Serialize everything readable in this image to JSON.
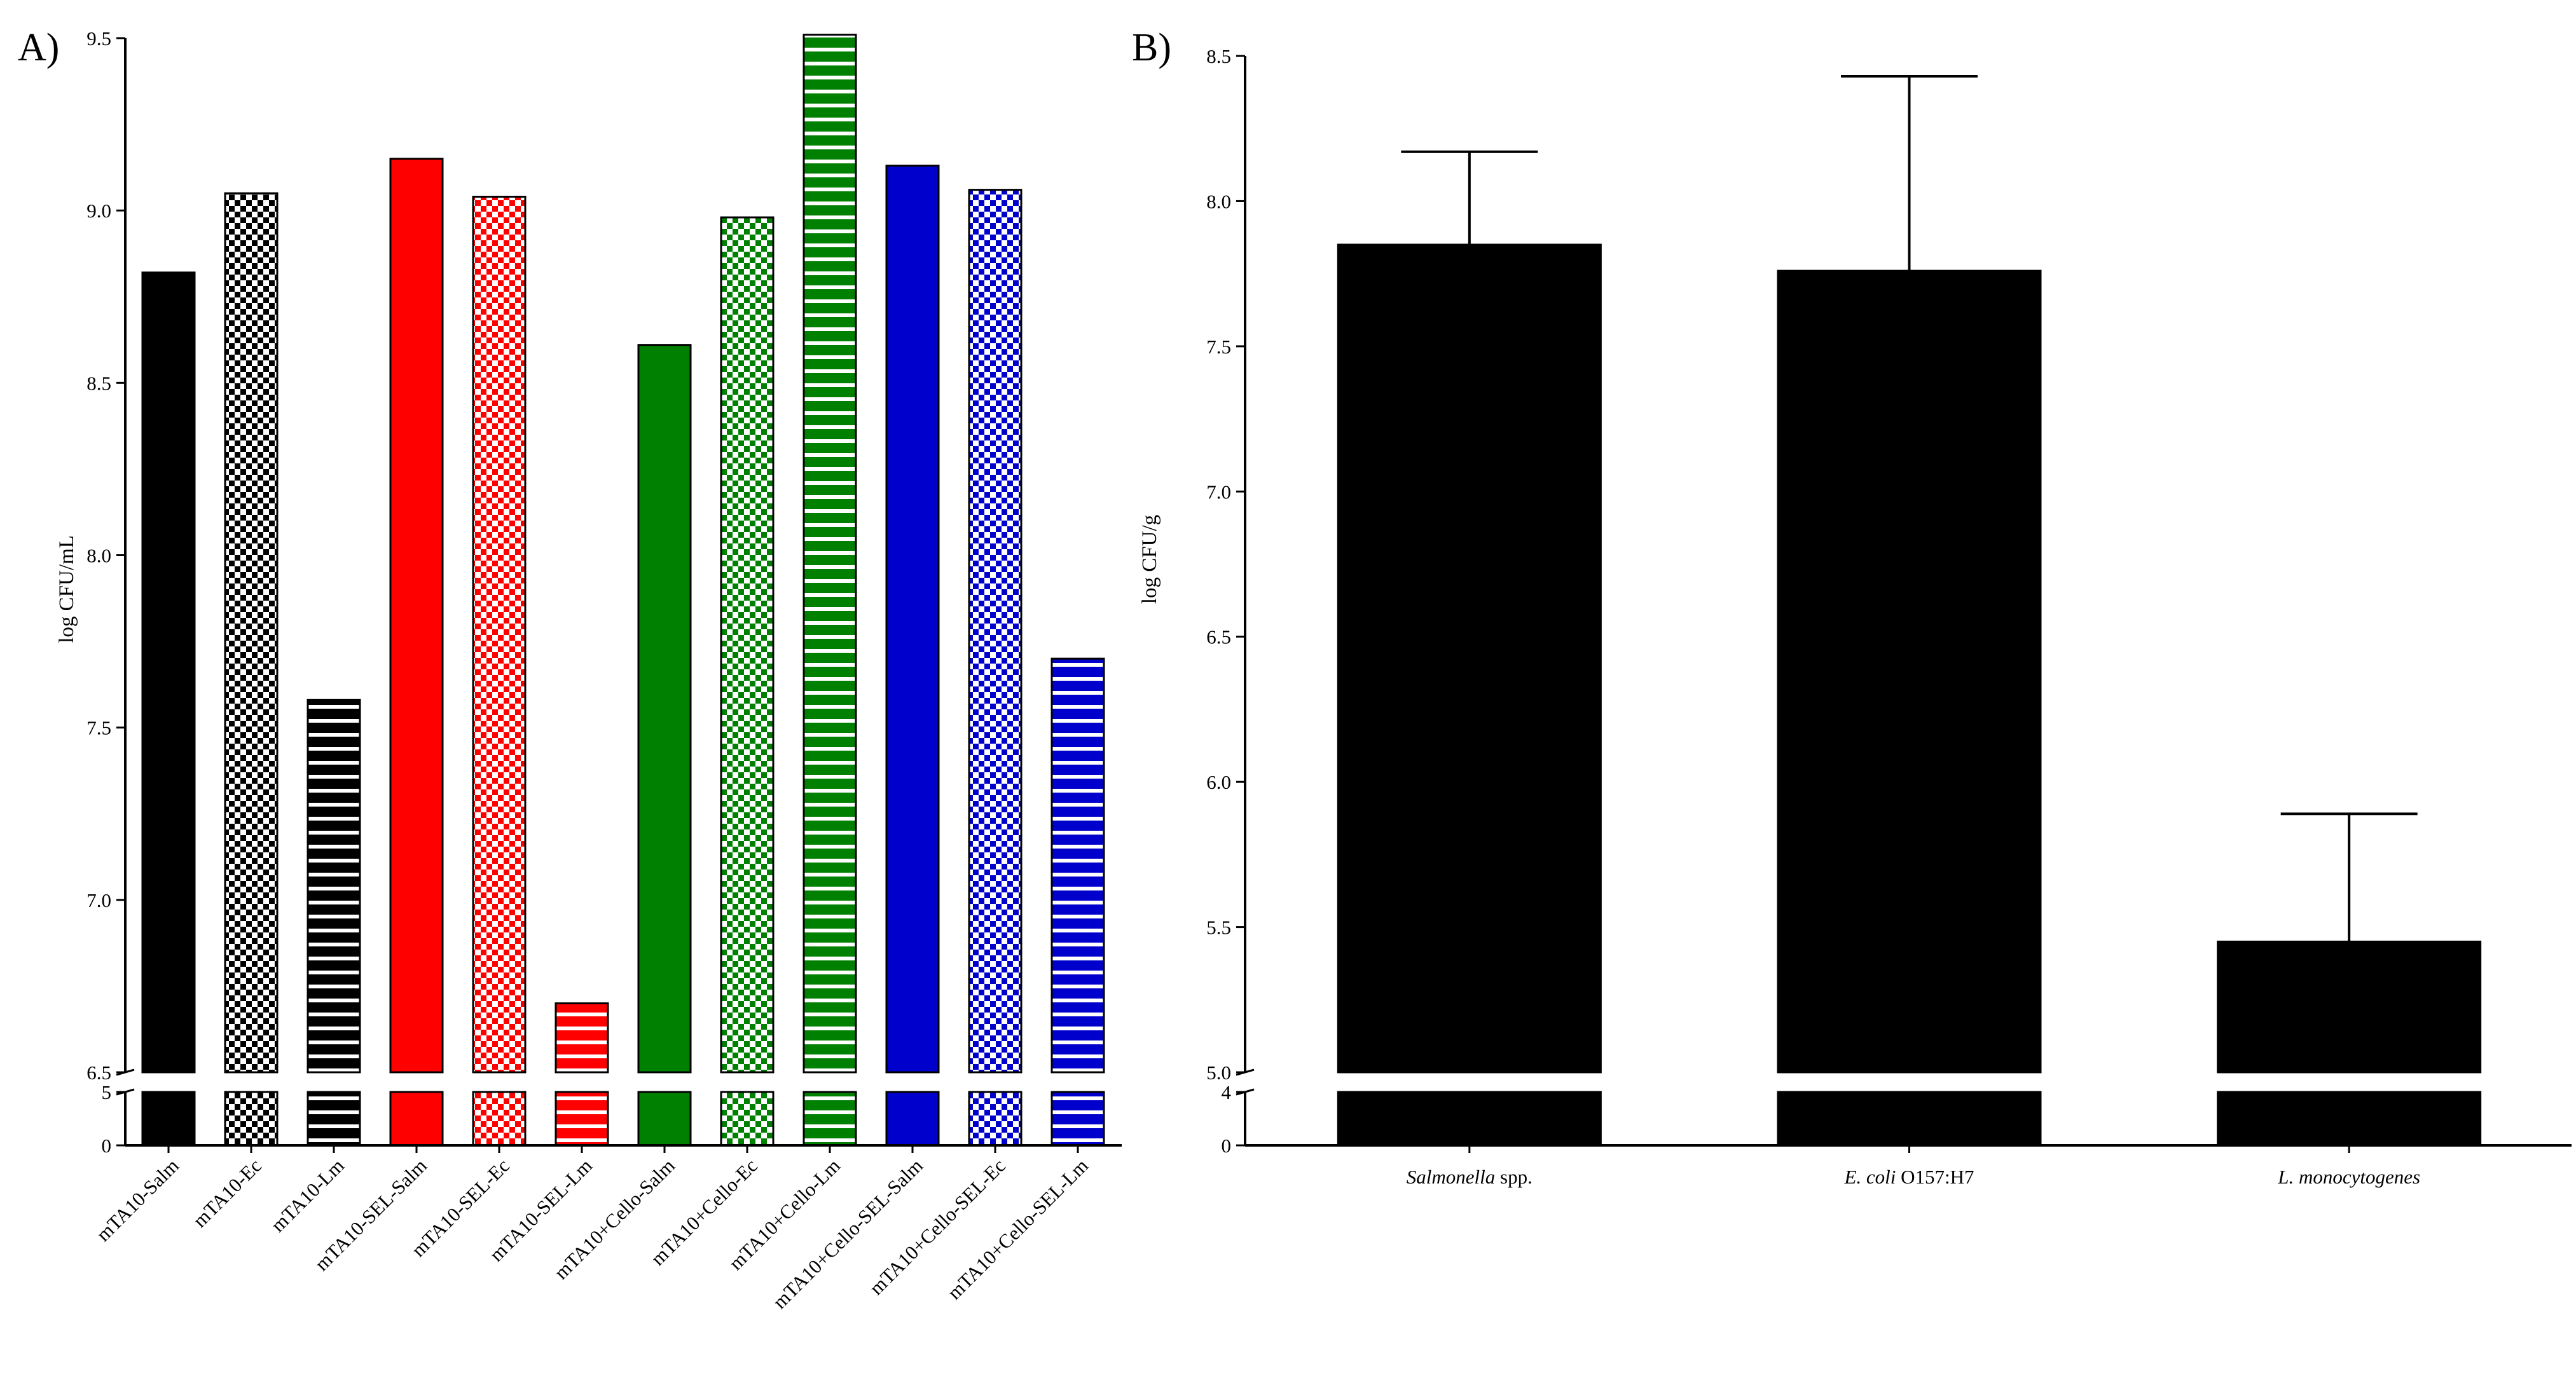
{
  "chart_data": [
    {
      "type": "bar",
      "panel_label": "A)",
      "title": "",
      "xlabel": "",
      "ylabel": "log CFU/mL",
      "ylim": [
        6.5,
        9.5
      ],
      "y_ticks": [
        "6.5",
        "7.0",
        "7.5",
        "8.0",
        "8.5",
        "9.0",
        "9.5"
      ],
      "y_break": true,
      "below_break_ylim": [
        0,
        5
      ],
      "below_break_ticks": [
        "0",
        "5"
      ],
      "grid": false,
      "categories": [
        "mTA10-Salm",
        "mTA10-Ec",
        "mTA10-Lm",
        "mTA10-SEL-Salm",
        "mTA10-SEL-Ec",
        "mTA10-SEL-Lm",
        "mTA10+Cello-Salm",
        "mTA10+Cello-Ec",
        "mTA10+Cello-Lm",
        "mTA10+Cello-SEL-Salm",
        "mTA10+Cello-SEL-Ec",
        "mTA10+Cello-SEL-Lm"
      ],
      "values": [
        8.82,
        9.05,
        7.58,
        9.15,
        9.04,
        6.7,
        8.61,
        8.98,
        9.51,
        9.13,
        9.06,
        7.7
      ],
      "bar_colors": [
        "#000000",
        "#000000",
        "#000000",
        "#ff0000",
        "#ff0000",
        "#ff0000",
        "#008000",
        "#008000",
        "#008000",
        "#0000cc",
        "#0000cc",
        "#0000cc"
      ],
      "bar_patterns": [
        "solid",
        "checker",
        "stripes",
        "solid",
        "checker",
        "stripes",
        "solid",
        "checker",
        "stripes",
        "solid",
        "checker",
        "stripes"
      ]
    },
    {
      "type": "bar",
      "panel_label": "B)",
      "title": "",
      "xlabel": "",
      "ylabel": "log CFU/g",
      "ylim": [
        5.0,
        8.5
      ],
      "y_ticks": [
        "5.0",
        "5.5",
        "6.0",
        "6.5",
        "7.0",
        "7.5",
        "8.0",
        "8.5"
      ],
      "y_break": true,
      "below_break_ylim": [
        0,
        4
      ],
      "below_break_ticks": [
        "0",
        "4"
      ],
      "grid": false,
      "categories": [
        {
          "italic": "Salmonella",
          "rest": " spp."
        },
        {
          "italic": "E. coli",
          "rest": " O157:H7"
        },
        {
          "italic": "L. monocytogenes",
          "rest": ""
        }
      ],
      "values": [
        7.85,
        7.76,
        5.45
      ],
      "error_upper": [
        8.17,
        8.43,
        5.89
      ],
      "bar_colors": [
        "#000000",
        "#000000",
        "#000000"
      ]
    }
  ]
}
